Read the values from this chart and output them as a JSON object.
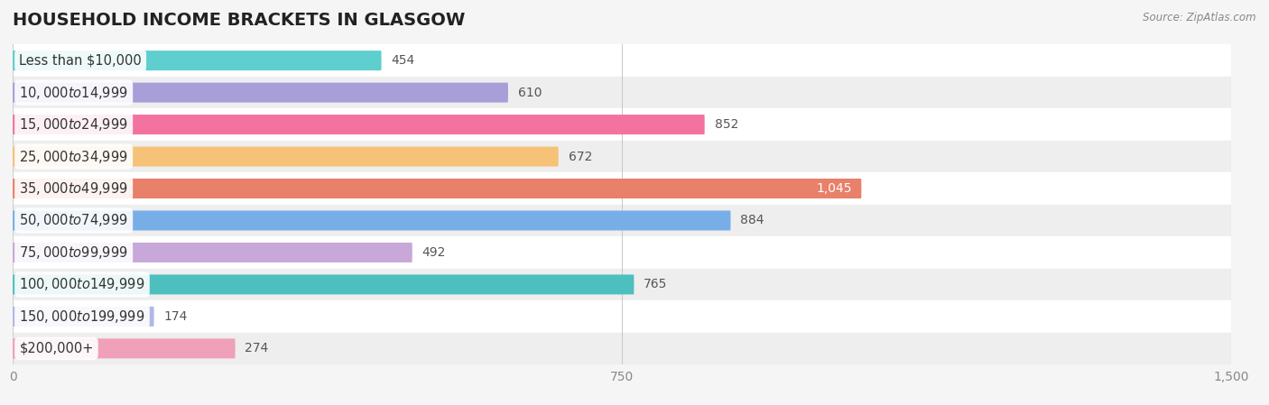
{
  "title": "HOUSEHOLD INCOME BRACKETS IN GLASGOW",
  "source": "Source: ZipAtlas.com",
  "categories": [
    "Less than $10,000",
    "$10,000 to $14,999",
    "$15,000 to $24,999",
    "$25,000 to $34,999",
    "$35,000 to $49,999",
    "$50,000 to $74,999",
    "$75,000 to $99,999",
    "$100,000 to $149,999",
    "$150,000 to $199,999",
    "$200,000+"
  ],
  "values": [
    454,
    610,
    852,
    672,
    1045,
    884,
    492,
    765,
    174,
    274
  ],
  "colors": [
    "#5ecece",
    "#a89fd8",
    "#f472a0",
    "#f5c278",
    "#e8806a",
    "#78aee8",
    "#c8a8d8",
    "#4dbfbf",
    "#b0b8e8",
    "#f0a0b8"
  ],
  "xlim": [
    0,
    1500
  ],
  "xticks": [
    0,
    750,
    1500
  ],
  "bar_height": 0.62,
  "background_color": "#f5f5f5",
  "row_bg_light": "#ffffff",
  "row_bg_dark": "#eeeeee",
  "title_fontsize": 14,
  "label_fontsize": 10.5,
  "value_fontsize": 10,
  "tick_fontsize": 10,
  "value_1045_color": "white"
}
